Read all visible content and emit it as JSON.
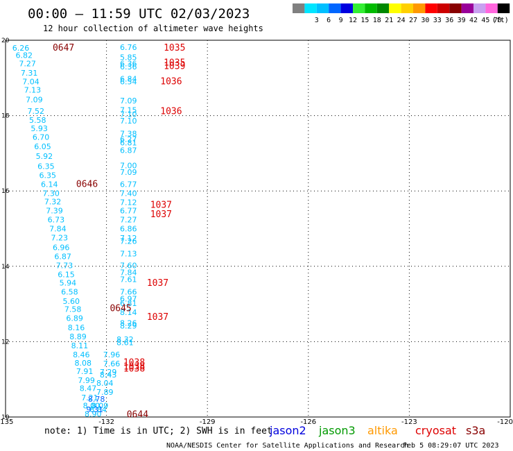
{
  "header": {
    "title": "00:00 — 11:59 UTC 02/03/2023",
    "subtitle": "12 hour collection of altimeter wave heights"
  },
  "legend": {
    "unit": "(ft)",
    "bins": [
      {
        "label": "",
        "color": "#808080"
      },
      {
        "label": "3",
        "color": "#00e5ff"
      },
      {
        "label": "6",
        "color": "#00bfff"
      },
      {
        "label": "9",
        "color": "#0066ff"
      },
      {
        "label": "12",
        "color": "#0000e0"
      },
      {
        "label": "15",
        "color": "#33ee33"
      },
      {
        "label": "18",
        "color": "#00bb00"
      },
      {
        "label": "21",
        "color": "#008800"
      },
      {
        "label": "24",
        "color": "#ffff00"
      },
      {
        "label": "27",
        "color": "#ffd000"
      },
      {
        "label": "30",
        "color": "#ff9900"
      },
      {
        "label": "33",
        "color": "#ff0000"
      },
      {
        "label": "36",
        "color": "#cc0000"
      },
      {
        "label": "39",
        "color": "#880000"
      },
      {
        "label": "42",
        "color": "#990099"
      },
      {
        "label": "45",
        "color": "#c8a0f0"
      },
      {
        "label": "70",
        "color": "#ff66dd"
      },
      {
        "label": "",
        "color": "#000000"
      }
    ]
  },
  "chart_data": {
    "type": "scatter",
    "xlim": [
      -135,
      -120
    ],
    "ylim": [
      10,
      20
    ],
    "x_ticks": [
      -135,
      -132,
      -129,
      -126,
      -123,
      -120
    ],
    "y_ticks": [
      10,
      12,
      14,
      16,
      18,
      20
    ],
    "grid": true,
    "tick_color": "#00aadd",
    "obs_color": "#00bfff",
    "time_color": "#880000",
    "time_labels": [
      {
        "lon": -133.6,
        "lat": 19.82,
        "text": "0647"
      },
      {
        "lon": -132.9,
        "lat": 16.2,
        "text": "0646"
      },
      {
        "lon": -131.9,
        "lat": 12.9,
        "text": "0645"
      },
      {
        "lon": -131.4,
        "lat": 10.08,
        "text": "0644"
      }
    ],
    "time_labels_red": [
      {
        "lon": -130.3,
        "lat": 19.82,
        "text": "1035"
      },
      {
        "lon": -130.3,
        "lat": 19.42,
        "text": "1035"
      },
      {
        "lon": -130.3,
        "lat": 19.33,
        "text": "1039"
      },
      {
        "lon": -130.4,
        "lat": 18.92,
        "text": "1036"
      },
      {
        "lon": -130.4,
        "lat": 18.13,
        "text": "1036"
      },
      {
        "lon": -130.7,
        "lat": 15.64,
        "text": "1037"
      },
      {
        "lon": -130.7,
        "lat": 15.4,
        "text": "1037"
      },
      {
        "lon": -130.8,
        "lat": 13.57,
        "text": "1037"
      },
      {
        "lon": -130.8,
        "lat": 12.67,
        "text": "1037"
      },
      {
        "lon": -131.5,
        "lat": 11.46,
        "text": "1038"
      },
      {
        "lon": -131.5,
        "lat": 11.35,
        "text": "1038"
      },
      {
        "lon": -131.5,
        "lat": 11.3,
        "text": "1038"
      }
    ],
    "observations": [
      {
        "lon": -134.8,
        "lat": 19.8,
        "text": "6.26"
      },
      {
        "lon": -134.7,
        "lat": 19.6,
        "text": "6.82"
      },
      {
        "lon": -134.6,
        "lat": 19.38,
        "text": "7.27"
      },
      {
        "lon": -134.55,
        "lat": 19.13,
        "text": "7.31"
      },
      {
        "lon": -134.5,
        "lat": 18.9,
        "text": "7.04"
      },
      {
        "lon": -134.45,
        "lat": 18.68,
        "text": "7.13"
      },
      {
        "lon": -134.4,
        "lat": 18.43,
        "text": "7.09"
      },
      {
        "lon": -134.35,
        "lat": 18.12,
        "text": "7.52"
      },
      {
        "lon": -134.3,
        "lat": 17.88,
        "text": "5.58"
      },
      {
        "lon": -134.25,
        "lat": 17.66,
        "text": "5.93"
      },
      {
        "lon": -134.2,
        "lat": 17.43,
        "text": "6.70"
      },
      {
        "lon": -134.15,
        "lat": 17.18,
        "text": "6.05"
      },
      {
        "lon": -134.1,
        "lat": 16.92,
        "text": "5.92"
      },
      {
        "lon": -134.05,
        "lat": 16.66,
        "text": "6.35"
      },
      {
        "lon": -134.0,
        "lat": 16.42,
        "text": "6.35"
      },
      {
        "lon": -133.95,
        "lat": 16.18,
        "text": "6.14"
      },
      {
        "lon": -133.9,
        "lat": 15.94,
        "text": "7.30"
      },
      {
        "lon": -133.85,
        "lat": 15.72,
        "text": "7.32"
      },
      {
        "lon": -133.8,
        "lat": 15.48,
        "text": "7.39"
      },
      {
        "lon": -133.75,
        "lat": 15.24,
        "text": "6.73"
      },
      {
        "lon": -133.7,
        "lat": 15.0,
        "text": "7.84"
      },
      {
        "lon": -133.65,
        "lat": 14.76,
        "text": "7.23"
      },
      {
        "lon": -133.6,
        "lat": 14.5,
        "text": "6.96"
      },
      {
        "lon": -133.55,
        "lat": 14.26,
        "text": "6.87"
      },
      {
        "lon": -133.5,
        "lat": 14.02,
        "text": "7.73"
      },
      {
        "lon": -133.45,
        "lat": 13.78,
        "text": "6.15"
      },
      {
        "lon": -133.4,
        "lat": 13.56,
        "text": "5.94"
      },
      {
        "lon": -133.35,
        "lat": 13.32,
        "text": "6.58"
      },
      {
        "lon": -133.3,
        "lat": 13.08,
        "text": "5.60"
      },
      {
        "lon": -133.25,
        "lat": 12.86,
        "text": "7.58"
      },
      {
        "lon": -133.2,
        "lat": 12.62,
        "text": "6.89"
      },
      {
        "lon": -133.15,
        "lat": 12.38,
        "text": "8.16"
      },
      {
        "lon": -133.1,
        "lat": 12.14,
        "text": "8.89"
      },
      {
        "lon": -133.05,
        "lat": 11.9,
        "text": "8.11"
      },
      {
        "lon": -133.0,
        "lat": 11.66,
        "text": "8.46"
      },
      {
        "lon": -132.95,
        "lat": 11.44,
        "text": "8.08"
      },
      {
        "lon": -132.9,
        "lat": 11.22,
        "text": "7.91"
      },
      {
        "lon": -132.85,
        "lat": 10.98,
        "text": "7.99"
      },
      {
        "lon": -132.8,
        "lat": 10.76,
        "text": "8.47"
      },
      {
        "lon": -132.75,
        "lat": 10.52,
        "text": "7.21"
      },
      {
        "lon": -132.7,
        "lat": 10.3,
        "text": "8.00"
      },
      {
        "lon": -132.65,
        "lat": 10.08,
        "text": "8.90"
      },
      {
        "lon": -131.6,
        "lat": 19.82,
        "text": "6.76"
      },
      {
        "lon": -131.6,
        "lat": 19.55,
        "text": "5.85"
      },
      {
        "lon": -131.6,
        "lat": 19.38,
        "text": "6.36"
      },
      {
        "lon": -131.6,
        "lat": 19.3,
        "text": "6.36"
      },
      {
        "lon": -131.6,
        "lat": 18.98,
        "text": "6.84"
      },
      {
        "lon": -131.6,
        "lat": 18.9,
        "text": "6.54"
      },
      {
        "lon": -131.6,
        "lat": 18.4,
        "text": "7.09"
      },
      {
        "lon": -131.6,
        "lat": 18.15,
        "text": "7.15"
      },
      {
        "lon": -131.6,
        "lat": 18.04,
        "text": "7.10"
      },
      {
        "lon": -131.6,
        "lat": 17.86,
        "text": "7.10"
      },
      {
        "lon": -131.6,
        "lat": 17.52,
        "text": "7.38"
      },
      {
        "lon": -131.6,
        "lat": 17.38,
        "text": "6.27"
      },
      {
        "lon": -131.6,
        "lat": 17.28,
        "text": "6.81"
      },
      {
        "lon": -131.6,
        "lat": 17.08,
        "text": "6.87"
      },
      {
        "lon": -131.6,
        "lat": 16.68,
        "text": "7.00"
      },
      {
        "lon": -131.6,
        "lat": 16.5,
        "text": "7.09"
      },
      {
        "lon": -131.6,
        "lat": 16.18,
        "text": "6.77"
      },
      {
        "lon": -131.6,
        "lat": 15.94,
        "text": "7.40"
      },
      {
        "lon": -131.6,
        "lat": 15.7,
        "text": "7.12"
      },
      {
        "lon": -131.6,
        "lat": 15.48,
        "text": "6.77"
      },
      {
        "lon": -131.6,
        "lat": 15.24,
        "text": "7.27"
      },
      {
        "lon": -131.6,
        "lat": 15.0,
        "text": "6.86"
      },
      {
        "lon": -131.6,
        "lat": 14.75,
        "text": "7.12"
      },
      {
        "lon": -131.6,
        "lat": 14.67,
        "text": "7.26"
      },
      {
        "lon": -131.6,
        "lat": 14.34,
        "text": "7.13"
      },
      {
        "lon": -131.6,
        "lat": 14.02,
        "text": "7.60"
      },
      {
        "lon": -131.6,
        "lat": 13.84,
        "text": "7.84"
      },
      {
        "lon": -131.6,
        "lat": 13.66,
        "text": "7.61"
      },
      {
        "lon": -131.6,
        "lat": 13.32,
        "text": "7.66"
      },
      {
        "lon": -131.6,
        "lat": 13.14,
        "text": "6.97"
      },
      {
        "lon": -131.6,
        "lat": 13.02,
        "text": "6.81"
      },
      {
        "lon": -131.6,
        "lat": 12.78,
        "text": "8.14"
      },
      {
        "lon": -131.6,
        "lat": 12.5,
        "text": "8.26"
      },
      {
        "lon": -131.6,
        "lat": 12.42,
        "text": "8.29"
      },
      {
        "lon": -131.7,
        "lat": 12.06,
        "text": "8.32"
      },
      {
        "lon": -131.7,
        "lat": 11.98,
        "text": "8.61"
      },
      {
        "lon": -132.1,
        "lat": 11.66,
        "text": "7.96"
      },
      {
        "lon": -132.1,
        "lat": 11.42,
        "text": "7.66"
      },
      {
        "lon": -132.2,
        "lat": 11.2,
        "text": "7.29"
      },
      {
        "lon": -132.2,
        "lat": 11.12,
        "text": "8.43"
      },
      {
        "lon": -132.3,
        "lat": 10.9,
        "text": "8.04"
      },
      {
        "lon": -132.3,
        "lat": 10.66,
        "text": "7.89"
      },
      {
        "lon": -132.45,
        "lat": 10.3,
        "text": "8.09"
      },
      {
        "lon": -132.5,
        "lat": 10.2,
        "text": "8.84"
      }
    ],
    "observations_blue": [
      {
        "lon": -132.55,
        "lat": 10.48,
        "text": "8.78"
      },
      {
        "lon": -132.6,
        "lat": 10.2,
        "text": "9.31"
      }
    ]
  },
  "footer": {
    "note": "note:  1) Time is in UTC; 2) SWH is in feet",
    "satellites": [
      {
        "name": "jason2",
        "color": "#0000dd"
      },
      {
        "name": "jason3",
        "color": "#009900"
      },
      {
        "name": "altika",
        "color": "#ff9900"
      },
      {
        "name": "cryosat",
        "color": "#dd0000"
      },
      {
        "name": "s3a",
        "color": "#880000"
      }
    ],
    "credit": "NOAA/NESDIS Center for Satellite Applications and Research",
    "timestamp": "Feb  5 08:29:07 UTC 2023"
  }
}
